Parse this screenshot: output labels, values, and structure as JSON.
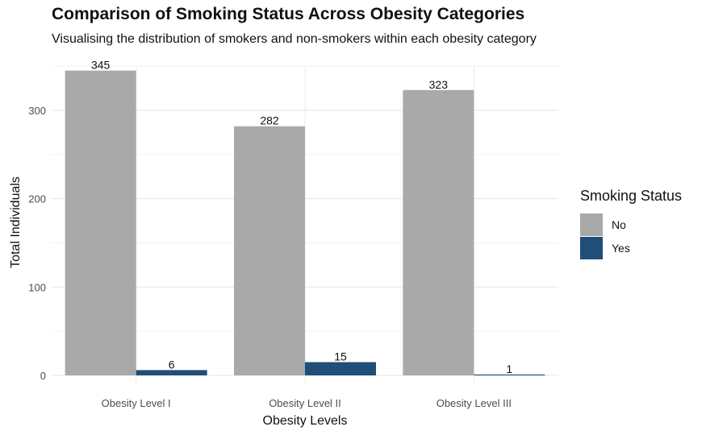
{
  "chart_data": {
    "type": "bar",
    "title": "Comparison of Smoking Status Across Obesity Categories",
    "subtitle": "Visualising the distribution of smokers and non-smokers within each obesity category",
    "xlabel": "Obesity Levels",
    "ylabel": "Total Individuals",
    "categories": [
      "Obesity Level I",
      "Obesity Level II",
      "Obesity Level III"
    ],
    "series": [
      {
        "name": "No",
        "values": [
          345,
          282,
          323
        ],
        "color": "#a9a9a9"
      },
      {
        "name": "Yes",
        "values": [
          6,
          15,
          1
        ],
        "color": "#1f4e79"
      }
    ],
    "ylim": [
      0,
      360
    ],
    "yticks": [
      0,
      100,
      200,
      300
    ],
    "legend_title": "Smoking Status",
    "legend_position": "right",
    "grid": true
  }
}
